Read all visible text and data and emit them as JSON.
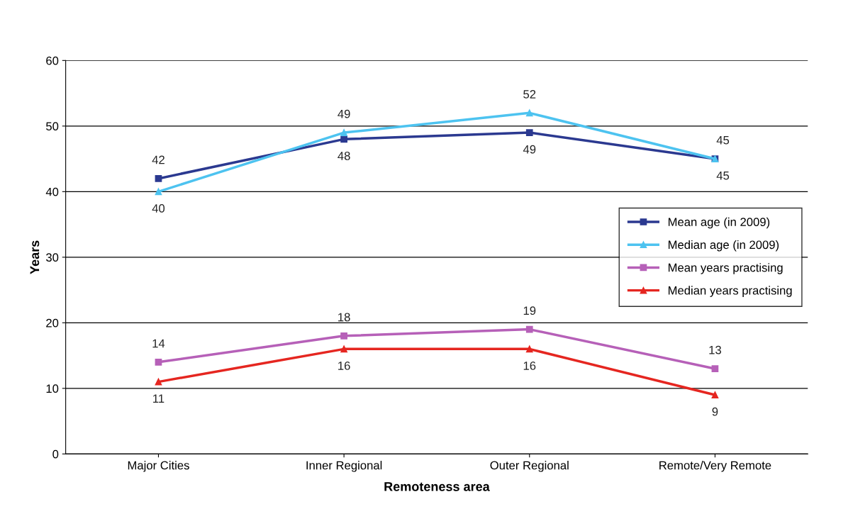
{
  "chart_data": {
    "type": "line",
    "xlabel": "Remoteness area",
    "ylabel": "Years",
    "categories": [
      "Major Cities",
      "Inner Regional",
      "Outer Regional",
      "Remote/Very Remote"
    ],
    "series": [
      {
        "name": "Mean age (in 2009)",
        "color": "#2b3990",
        "marker": "square",
        "values": [
          42,
          48,
          49,
          45
        ]
      },
      {
        "name": "Median age (in 2009)",
        "color": "#4dc3f0",
        "marker": "triangle",
        "values": [
          40,
          49,
          52,
          45
        ]
      },
      {
        "name": "Mean years practising",
        "color": "#b660b8",
        "marker": "square",
        "values": [
          14,
          18,
          19,
          13
        ]
      },
      {
        "name": "Median years practising",
        "color": "#e52620",
        "marker": "triangle",
        "values": [
          11,
          16,
          16,
          9
        ]
      }
    ],
    "ylim": [
      0,
      60
    ],
    "yticks": [
      0,
      10,
      20,
      30,
      40,
      50,
      60
    ],
    "grid": "y",
    "legend": "center right",
    "data_labels": true,
    "line_style": "solid"
  }
}
